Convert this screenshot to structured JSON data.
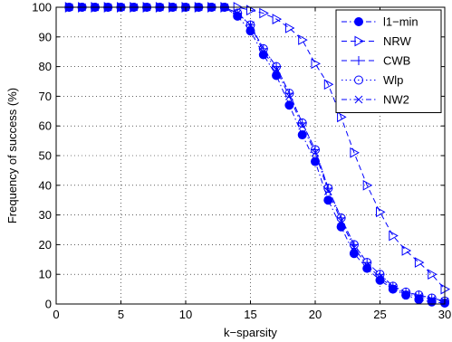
{
  "chart_data": {
    "type": "line",
    "title": "",
    "xlabel": "k−sparsity",
    "ylabel": "Frequency of success (%)",
    "xlim": [
      0,
      30
    ],
    "ylim": [
      0,
      100
    ],
    "xticks": [
      0,
      5,
      10,
      15,
      20,
      25,
      30
    ],
    "yticks": [
      0,
      10,
      20,
      30,
      40,
      50,
      60,
      70,
      80,
      90,
      100
    ],
    "grid": true,
    "legend_position": "top-right",
    "color": "#0000ff",
    "x": [
      1,
      2,
      3,
      4,
      5,
      6,
      7,
      8,
      9,
      10,
      11,
      12,
      13,
      14,
      15,
      16,
      17,
      18,
      19,
      20,
      21,
      22,
      23,
      24,
      25,
      26,
      27,
      28,
      29,
      30
    ],
    "series": [
      {
        "name": "l1−min",
        "marker": "filled-circle",
        "line": "dash-dot",
        "values": [
          100,
          100,
          100,
          100,
          100,
          100,
          100,
          100,
          100,
          100,
          100,
          100,
          100,
          97,
          92,
          84,
          77,
          67,
          57,
          48,
          35,
          26,
          17,
          12,
          8,
          5,
          3,
          1.5,
          0.7,
          0.3
        ]
      },
      {
        "name": "NRW",
        "marker": "triangle-right",
        "line": "dash",
        "values": [
          100,
          100,
          100,
          100,
          100,
          100,
          100,
          100,
          100,
          100,
          100,
          100,
          100,
          100,
          99,
          98,
          96,
          93,
          89,
          81,
          74,
          63,
          51,
          40,
          31,
          23,
          18,
          14,
          10,
          5
        ]
      },
      {
        "name": "CWB",
        "marker": "plus",
        "line": "dash",
        "values": [
          100,
          100,
          100,
          100,
          100,
          100,
          100,
          100,
          100,
          100,
          100,
          100,
          100,
          98,
          94,
          86,
          80,
          71,
          61,
          52,
          39,
          29,
          20,
          14,
          10,
          6,
          4,
          3,
          2,
          1
        ]
      },
      {
        "name": "Wlp",
        "marker": "open-circle",
        "line": "dotted",
        "values": [
          100,
          100,
          100,
          100,
          100,
          100,
          100,
          100,
          100,
          100,
          100,
          100,
          100,
          98,
          94,
          86,
          80,
          71,
          61,
          52,
          39,
          29,
          20,
          14,
          10,
          6,
          4,
          3,
          2,
          1
        ]
      },
      {
        "name": "NW2",
        "marker": "x",
        "line": "dash-dot",
        "values": [
          100,
          100,
          100,
          100,
          100,
          100,
          100,
          100,
          100,
          100,
          100,
          100,
          100,
          98,
          94,
          85,
          79,
          70,
          60,
          51,
          38,
          28,
          19,
          13,
          9,
          5.5,
          3.5,
          2.5,
          1.5,
          0.8
        ]
      }
    ]
  }
}
